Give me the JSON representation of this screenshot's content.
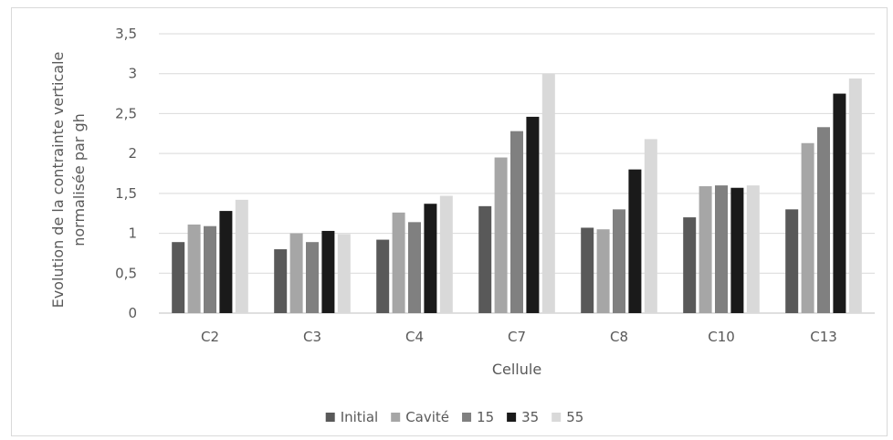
{
  "chart_data": {
    "type": "bar",
    "categories": [
      "C2",
      "C3",
      "C4",
      "C7",
      "C8",
      "C10",
      "C13"
    ],
    "series": [
      {
        "name": "Initial",
        "color": "#595959",
        "values": [
          0.89,
          0.8,
          0.92,
          1.34,
          1.07,
          1.2,
          1.3
        ]
      },
      {
        "name": "Cavité",
        "color": "#a6a6a6",
        "values": [
          1.11,
          1.0,
          1.26,
          1.95,
          1.05,
          1.59,
          2.13
        ]
      },
      {
        "name": "15",
        "color": "#808080",
        "values": [
          1.09,
          0.89,
          1.14,
          2.28,
          1.3,
          1.6,
          2.33
        ]
      },
      {
        "name": "35",
        "color": "#1a1a1a",
        "values": [
          1.28,
          1.03,
          1.37,
          2.46,
          1.8,
          1.57,
          2.75
        ]
      },
      {
        "name": "55",
        "color": "#d9d9d9",
        "values": [
          1.42,
          0.99,
          1.47,
          3.0,
          2.18,
          1.6,
          2.94
        ]
      }
    ],
    "yticks": [
      "0",
      "0,5",
      "1",
      "1,5",
      "2",
      "2,5",
      "3",
      "3,5"
    ],
    "ylim": [
      0,
      3.5
    ],
    "xlabel": "Cellule",
    "ylabel_lines": [
      "Evolution de la contrainte verticale",
      "normalisée par gh"
    ],
    "grid": true,
    "legend_position": "bottom"
  }
}
